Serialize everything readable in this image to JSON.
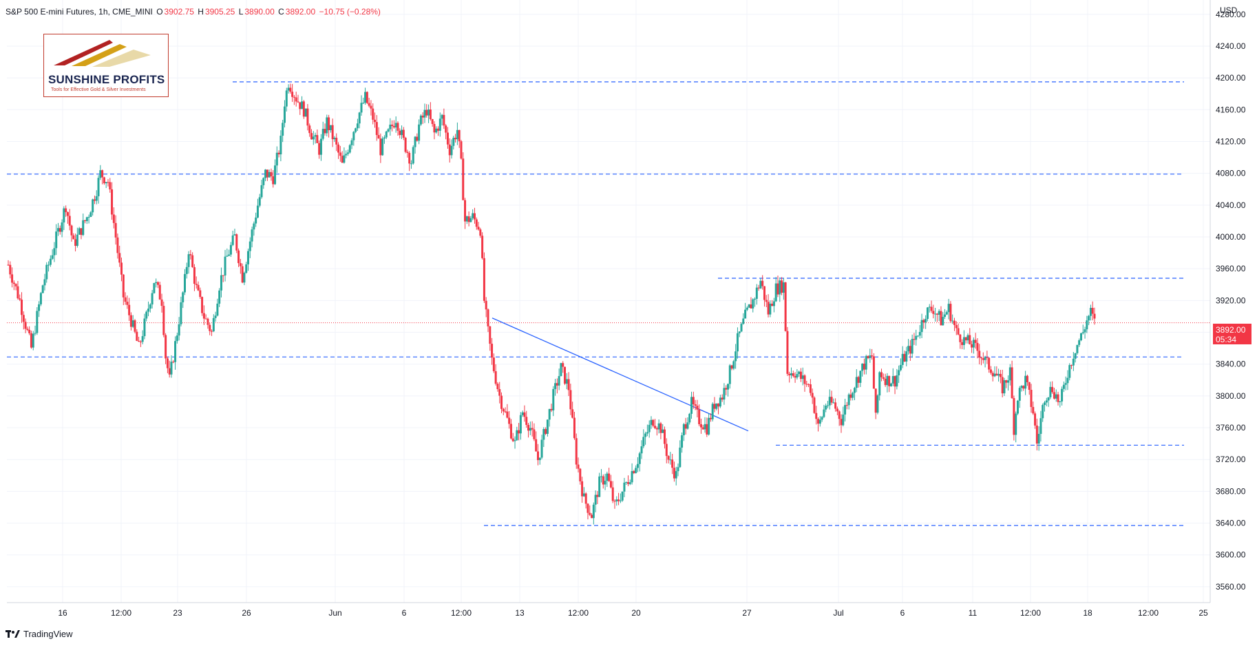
{
  "header": {
    "title": "S&P 500 E-mini Futures, 1h, CME_MINI",
    "open_label": "O",
    "open_value": "3902.75",
    "high_label": "H",
    "high_value": "3905.25",
    "low_label": "L",
    "low_value": "3890.00",
    "close_label": "C",
    "close_value": "3892.00",
    "change_value": "−10.75 (−0.28%)"
  },
  "currency": "USD",
  "price_tag": {
    "price": "3892.00",
    "countdown": "05:34"
  },
  "logo": {
    "name": "SUNSHINE PROFITS",
    "tagline": "Tools for Effective Gold & Silver Investments"
  },
  "branding": "TradingView",
  "colors": {
    "up": "#26a69a",
    "down": "#f23645",
    "level": "#2962ff",
    "current": "#f23645"
  },
  "chart_data": {
    "type": "candlestick",
    "x_tick_labels": [
      "16",
      "12:00",
      "23",
      "26",
      "Jun",
      "6",
      "12:00",
      "13",
      "12:00",
      "20",
      "27",
      "Jul",
      "6",
      "11",
      "12:00",
      "18",
      "12:00",
      "25"
    ],
    "y_tick_labels": [
      "3560.00",
      "3600.00",
      "3640.00",
      "3680.00",
      "3720.00",
      "3760.00",
      "3800.00",
      "3840.00",
      "3880.00",
      "3920.00",
      "3960.00",
      "4000.00",
      "4040.00",
      "4080.00",
      "4120.00",
      "4160.00",
      "4200.00",
      "4240.00",
      "4280.00"
    ],
    "ylim": [
      3540,
      4298
    ],
    "current_price": 3892.0,
    "horizontal_levels": [
      4195,
      4079,
      3948,
      3849,
      3738,
      3637
    ],
    "trendline": {
      "from": 3898,
      "to": 3756
    },
    "price_path": [
      [
        0,
        3965
      ],
      [
        3,
        3920
      ],
      [
        6,
        3860
      ],
      [
        9,
        3940
      ],
      [
        12,
        3990
      ],
      [
        15,
        4040
      ],
      [
        17,
        3990
      ],
      [
        19,
        4010
      ],
      [
        21,
        4030
      ],
      [
        23,
        4060
      ],
      [
        24,
        4080
      ],
      [
        26,
        4070
      ],
      [
        28,
        4000
      ],
      [
        30,
        3925
      ],
      [
        32,
        3895
      ],
      [
        34,
        3860
      ],
      [
        36,
        3900
      ],
      [
        38,
        3945
      ],
      [
        40,
        3920
      ],
      [
        41,
        3850
      ],
      [
        42,
        3820
      ],
      [
        44,
        3880
      ],
      [
        46,
        3945
      ],
      [
        47,
        3985
      ],
      [
        49,
        3935
      ],
      [
        51,
        3900
      ],
      [
        53,
        3880
      ],
      [
        55,
        3940
      ],
      [
        57,
        3975
      ],
      [
        59,
        4000
      ],
      [
        61,
        3950
      ],
      [
        63,
        3995
      ],
      [
        65,
        4040
      ],
      [
        67,
        4080
      ],
      [
        69,
        4075
      ],
      [
        71,
        4120
      ],
      [
        72,
        4170
      ],
      [
        73,
        4195
      ],
      [
        75,
        4175
      ],
      [
        77,
        4160
      ],
      [
        79,
        4130
      ],
      [
        81,
        4110
      ],
      [
        83,
        4145
      ],
      [
        85,
        4120
      ],
      [
        87,
        4090
      ],
      [
        89,
        4120
      ],
      [
        91,
        4150
      ],
      [
        93,
        4175
      ],
      [
        95,
        4150
      ],
      [
        97,
        4110
      ],
      [
        99,
        4130
      ],
      [
        101,
        4150
      ],
      [
        103,
        4120
      ],
      [
        105,
        4095
      ],
      [
        107,
        4140
      ],
      [
        109,
        4160
      ],
      [
        111,
        4130
      ],
      [
        113,
        4150
      ],
      [
        115,
        4110
      ],
      [
        117,
        4135
      ],
      [
        118,
        4090
      ],
      [
        119,
        4020
      ],
      [
        121,
        4025
      ],
      [
        123,
        4010
      ],
      [
        124,
        3920
      ],
      [
        125,
        3880
      ],
      [
        126,
        3845
      ],
      [
        128,
        3800
      ],
      [
        130,
        3770
      ],
      [
        132,
        3740
      ],
      [
        134,
        3780
      ],
      [
        136,
        3760
      ],
      [
        138,
        3720
      ],
      [
        140,
        3760
      ],
      [
        142,
        3800
      ],
      [
        144,
        3835
      ],
      [
        146,
        3810
      ],
      [
        148,
        3720
      ],
      [
        150,
        3670
      ],
      [
        152,
        3650
      ],
      [
        154,
        3690
      ],
      [
        156,
        3700
      ],
      [
        158,
        3660
      ],
      [
        160,
        3680
      ],
      [
        162,
        3700
      ],
      [
        164,
        3720
      ],
      [
        166,
        3750
      ],
      [
        168,
        3770
      ],
      [
        170,
        3760
      ],
      [
        172,
        3720
      ],
      [
        174,
        3700
      ],
      [
        176,
        3760
      ],
      [
        178,
        3790
      ],
      [
        180,
        3770
      ],
      [
        182,
        3760
      ],
      [
        184,
        3790
      ],
      [
        186,
        3800
      ],
      [
        188,
        3830
      ],
      [
        190,
        3870
      ],
      [
        192,
        3900
      ],
      [
        194,
        3920
      ],
      [
        196,
        3945
      ],
      [
        198,
        3905
      ],
      [
        200,
        3935
      ],
      [
        202,
        3940
      ],
      [
        203,
        3830
      ],
      [
        205,
        3830
      ],
      [
        207,
        3820
      ],
      [
        209,
        3810
      ],
      [
        211,
        3760
      ],
      [
        213,
        3790
      ],
      [
        215,
        3790
      ],
      [
        217,
        3770
      ],
      [
        219,
        3800
      ],
      [
        221,
        3820
      ],
      [
        223,
        3840
      ],
      [
        225,
        3850
      ],
      [
        226,
        3770
      ],
      [
        227,
        3830
      ],
      [
        229,
        3820
      ],
      [
        231,
        3820
      ],
      [
        233,
        3845
      ],
      [
        235,
        3860
      ],
      [
        237,
        3880
      ],
      [
        239,
        3905
      ],
      [
        241,
        3910
      ],
      [
        243,
        3895
      ],
      [
        245,
        3910
      ],
      [
        247,
        3880
      ],
      [
        249,
        3870
      ],
      [
        251,
        3865
      ],
      [
        253,
        3855
      ],
      [
        255,
        3840
      ],
      [
        257,
        3830
      ],
      [
        259,
        3810
      ],
      [
        261,
        3830
      ],
      [
        262,
        3760
      ],
      [
        263,
        3800
      ],
      [
        265,
        3820
      ],
      [
        267,
        3780
      ],
      [
        268,
        3740
      ],
      [
        270,
        3800
      ],
      [
        272,
        3810
      ],
      [
        274,
        3790
      ],
      [
        276,
        3830
      ],
      [
        278,
        3860
      ],
      [
        280,
        3880
      ],
      [
        281,
        3895
      ],
      [
        282,
        3905
      ],
      [
        283,
        3892
      ]
    ]
  }
}
